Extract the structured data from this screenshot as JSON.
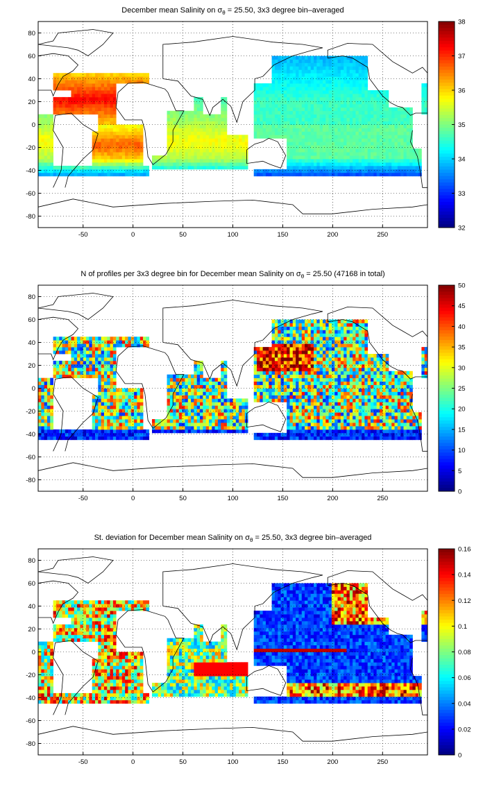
{
  "x_axis": {
    "ticks": [
      "-50",
      "0",
      "50",
      "100",
      "150",
      "200",
      "250"
    ],
    "values": [
      -50,
      0,
      50,
      100,
      150,
      200,
      250
    ],
    "range": [
      -95,
      295
    ]
  },
  "y_axis": {
    "ticks": [
      "80",
      "60",
      "40",
      "20",
      "0",
      "-20",
      "-40",
      "-60",
      "-80"
    ],
    "values": [
      80,
      60,
      40,
      20,
      0,
      -20,
      -40,
      -60,
      -80
    ],
    "range": [
      -90,
      90
    ]
  },
  "panels": [
    {
      "title_pre": "December mean Salinity on ",
      "sigma": "σ",
      "sigma_sub": "θ",
      "title_post": " = 25.50, 3x3 degree bin–averaged",
      "colorbar": {
        "ticks": [
          "38",
          "37",
          "36",
          "35",
          "34",
          "33",
          "32"
        ],
        "range": [
          32,
          38
        ],
        "colormap": "jet"
      }
    },
    {
      "title_pre": "N of profiles per 3x3 degree bin for December mean Salinity on ",
      "sigma": "σ",
      "sigma_sub": "θ",
      "title_post": " = 25.50 (47168 in total)",
      "colorbar": {
        "ticks": [
          "50",
          "45",
          "40",
          "35",
          "30",
          "25",
          "20",
          "15",
          "10",
          "5",
          "0"
        ],
        "range": [
          0,
          50
        ],
        "colormap": "jet"
      }
    },
    {
      "title_pre": "St. deviation for December mean Salinity on ",
      "sigma": "σ",
      "sigma_sub": "θ",
      "title_post": " = 25.50, 3x3 degree bin–averaged",
      "colorbar": {
        "ticks": [
          "0.16",
          "0.14",
          "0.12",
          "0.1",
          "0.08",
          "0.06",
          "0.04",
          "0.02",
          "0"
        ],
        "range": [
          0,
          0.16
        ],
        "colormap": "jet"
      }
    }
  ]
}
